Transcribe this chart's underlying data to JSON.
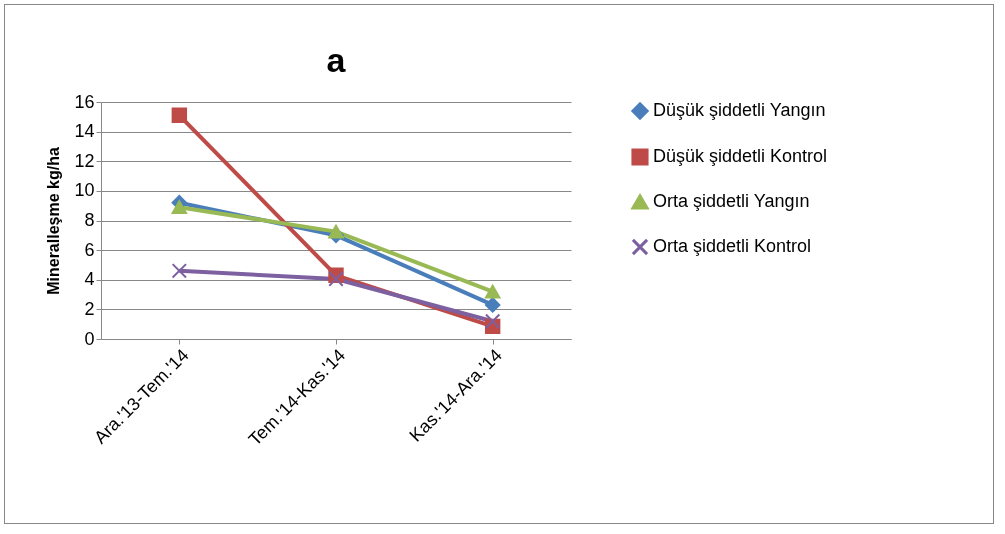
{
  "chart_data": {
    "type": "line",
    "title": "a",
    "ylabel": "Mineralleşme kg/ha",
    "categories": [
      "Ara.'13-Tem.'14",
      "Tem.'14-Kas.'14",
      "Kas.'14-Ara.'14"
    ],
    "series": [
      {
        "name": "Düşük şiddetli Yangın",
        "color": "#4a7ebb",
        "marker": "diamond",
        "values": [
          9.2,
          7.0,
          2.3
        ]
      },
      {
        "name": "Düşük şiddetli Kontrol",
        "color": "#be4b48",
        "marker": "square",
        "values": [
          15.1,
          4.3,
          0.85
        ]
      },
      {
        "name": "Orta şiddetli Yangın",
        "color": "#98b954",
        "marker": "triangle",
        "values": [
          8.9,
          7.25,
          3.2
        ]
      },
      {
        "name": "Orta şiddetli Kontrol",
        "color": "#7d60a0",
        "marker": "cross",
        "values": [
          4.6,
          4.05,
          1.2
        ]
      }
    ],
    "ylim": [
      0,
      16
    ],
    "yticks": [
      0,
      2,
      4,
      6,
      8,
      10,
      12,
      14,
      16
    ],
    "grid": "y",
    "legend": "right"
  }
}
